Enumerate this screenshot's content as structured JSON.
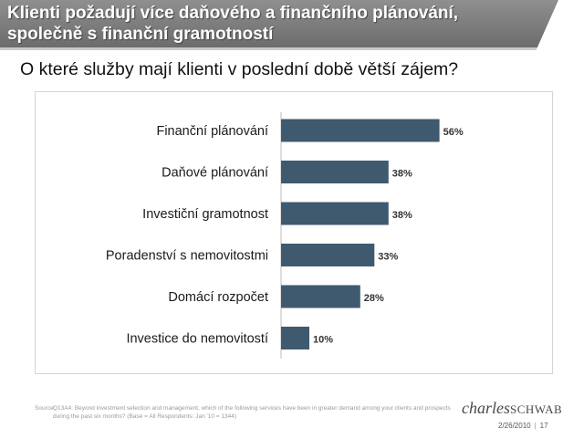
{
  "header": {
    "title_line1": "Klienti požadují více daňového a finančního plánování,",
    "title_line2": "společně s finanční gramotností"
  },
  "chart_data": {
    "type": "bar",
    "orientation": "horizontal",
    "title": "O které služby mají klienti v poslední době větší zájem?",
    "categories": [
      "Finanční plánování",
      "Daňové plánování",
      "Investiční gramotnost",
      "Poradenství s nemovitostmi",
      "Domácí rozpočet",
      "Investice do nemovitostí"
    ],
    "values": [
      56,
      38,
      38,
      33,
      28,
      10
    ],
    "value_labels": [
      "56%",
      "38%",
      "38%",
      "33%",
      "28%",
      "10%"
    ],
    "xlim": [
      0,
      60
    ],
    "grid": false,
    "bar_color": "#3f5a6f"
  },
  "footer": {
    "source_label": "Source:",
    "source_text": "Q13A4: Beyond investment selection and management, which of the following services have been in greater demand among your clients and prospects during the past six months? (Base = All Respondents: Jan '10 = 1344)",
    "logo_script": "charles",
    "logo_caps": "SCHWAB",
    "date": "2/26/2010",
    "page": "17"
  }
}
